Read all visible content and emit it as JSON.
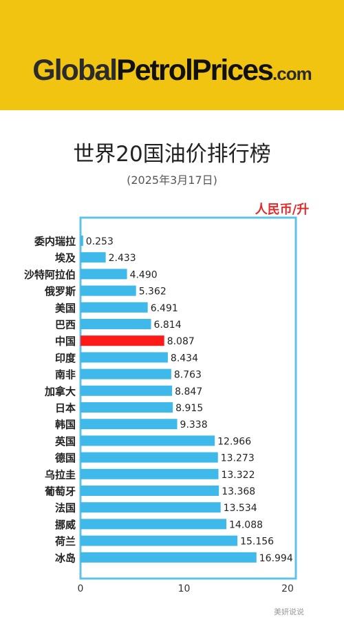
{
  "header": {
    "logo_global": "Global",
    "logo_petrol": "PetrolPrices",
    "logo_com": ".com"
  },
  "watermark": "美妍说说",
  "colors": {
    "banner": "#f0c410",
    "bar": "#3fb8ea",
    "highlight_bar": "#ff1a1a",
    "frame": "#5fc3e8",
    "unit_text": "#e32a2a"
  },
  "chart_data": {
    "type": "bar",
    "orientation": "horizontal",
    "title": "世界20国油价排行榜",
    "subtitle": "(2025年3月17日)",
    "unit_label": "人民币/升",
    "categories": [
      "委内瑞拉",
      "埃及",
      "沙特阿拉伯",
      "俄罗斯",
      "美国",
      "巴西",
      "中国",
      "印度",
      "南非",
      "加拿大",
      "日本",
      "韩国",
      "英国",
      "德国",
      "乌拉圭",
      "葡萄牙",
      "法国",
      "挪威",
      "荷兰",
      "冰岛"
    ],
    "values": [
      0.253,
      2.433,
      4.49,
      5.362,
      6.491,
      6.814,
      8.087,
      8.434,
      8.763,
      8.847,
      8.915,
      9.338,
      12.966,
      13.273,
      13.322,
      13.368,
      13.534,
      14.088,
      15.156,
      16.994
    ],
    "value_labels": [
      "0.253",
      "2.433",
      "4.490",
      "5.362",
      "6.491",
      "6.814",
      "8.087",
      "8.434",
      "8.763",
      "8.847",
      "8.915",
      "9.338",
      "12.966",
      "13.273",
      "13.322",
      "13.368",
      "13.534",
      "14.088",
      "15.156",
      "16.994"
    ],
    "highlight": "中国",
    "xlim": [
      0,
      20
    ],
    "xticks": [
      0,
      10,
      20
    ],
    "grid": false,
    "legend": "none"
  }
}
